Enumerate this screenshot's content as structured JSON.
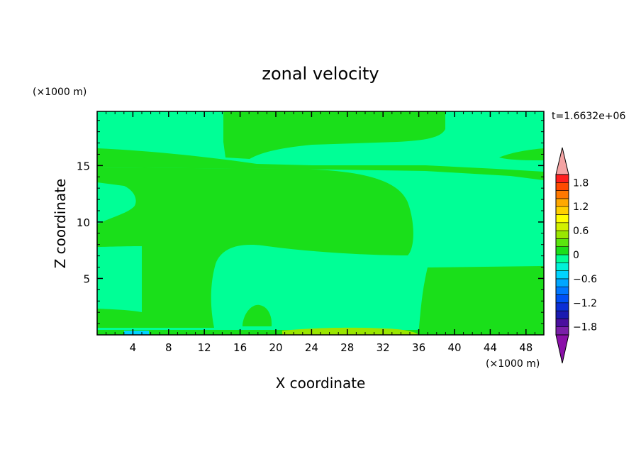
{
  "chart_data": {
    "type": "heatmap",
    "title": "zonal velocity",
    "xlabel": "X coordinate",
    "ylabel": "Z coordinate",
    "x_unit": "(×1000 m)",
    "y_unit": "(×1000 m)",
    "time_label": "t=1.6632e+06",
    "xlim": [
      0,
      50
    ],
    "ylim": [
      0,
      19.8
    ],
    "x_ticks": [
      4,
      8,
      12,
      16,
      20,
      24,
      28,
      32,
      36,
      40,
      44,
      48
    ],
    "y_ticks": [
      5,
      10,
      15
    ],
    "grid": false,
    "colorbar": {
      "placement": "right",
      "levels": [
        -2.0,
        -1.8,
        -1.6,
        -1.4,
        -1.2,
        -1.0,
        -0.8,
        -0.6,
        -0.4,
        -0.2,
        0.0,
        0.2,
        0.4,
        0.6,
        0.8,
        1.0,
        1.2,
        1.4,
        1.6,
        1.8,
        2.0
      ],
      "bins": [
        {
          "lo": -2.0,
          "hi": -1.8,
          "color": "#7a1fa8"
        },
        {
          "lo": -1.8,
          "hi": -1.6,
          "color": "#4a0f9e"
        },
        {
          "lo": -1.6,
          "hi": -1.4,
          "color": "#1a1ab0"
        },
        {
          "lo": -1.4,
          "hi": -1.2,
          "color": "#0c2fd6"
        },
        {
          "lo": -1.2,
          "hi": -1.0,
          "color": "#0050f5"
        },
        {
          "lo": -1.0,
          "hi": -0.8,
          "color": "#0077ff"
        },
        {
          "lo": -0.8,
          "hi": -0.6,
          "color": "#00a6ff"
        },
        {
          "lo": -0.6,
          "hi": -0.4,
          "color": "#00d4ff"
        },
        {
          "lo": -0.4,
          "hi": -0.2,
          "color": "#00f2d8"
        },
        {
          "lo": -0.2,
          "hi": 0.0,
          "color": "#00ff96"
        },
        {
          "lo": 0.0,
          "hi": 0.2,
          "color": "#1adf1a"
        },
        {
          "lo": 0.2,
          "hi": 0.4,
          "color": "#5ae60e"
        },
        {
          "lo": 0.4,
          "hi": 0.6,
          "color": "#9ae600"
        },
        {
          "lo": 0.6,
          "hi": 0.8,
          "color": "#d2f000"
        },
        {
          "lo": 0.8,
          "hi": 1.0,
          "color": "#ffff00"
        },
        {
          "lo": 1.0,
          "hi": 1.2,
          "color": "#ffd000"
        },
        {
          "lo": 1.2,
          "hi": 1.4,
          "color": "#ffa800"
        },
        {
          "lo": 1.4,
          "hi": 1.6,
          "color": "#ff7800"
        },
        {
          "lo": 1.6,
          "hi": 1.8,
          "color": "#ff4a00"
        },
        {
          "lo": 1.8,
          "hi": 2.0,
          "color": "#ff1e1e"
        }
      ],
      "under_color": "#8a10a8",
      "over_color": "#f4a3a3",
      "tick_labels": [
        "1.8",
        "1.2",
        "0.6",
        "0",
        "−0.6",
        "−1.2",
        "−1.8"
      ],
      "tick_values": [
        1.8,
        1.2,
        0.6,
        0.0,
        -0.6,
        -1.2,
        -1.8
      ]
    }
  }
}
